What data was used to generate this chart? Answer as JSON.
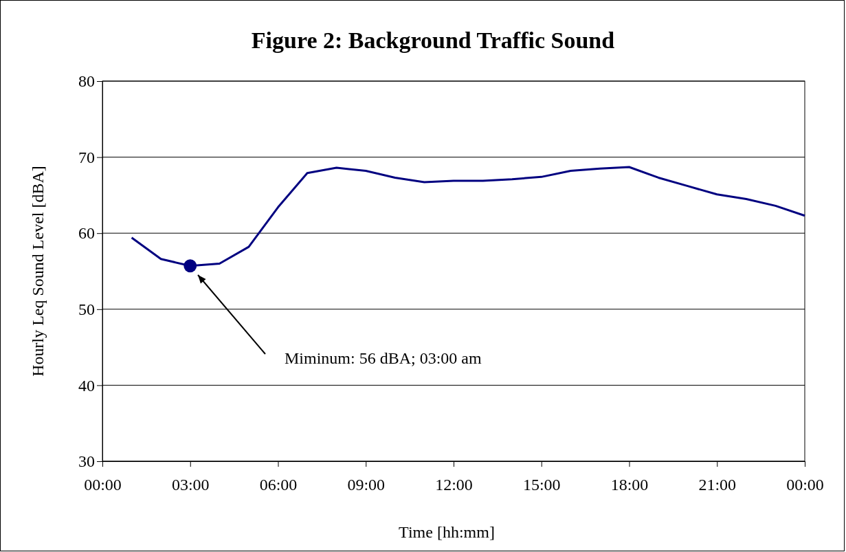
{
  "chart_data": {
    "type": "line",
    "title": "Figure 2: Background Traffic Sound",
    "xlabel": "Time [hh:mm]",
    "ylabel": "Hourly Leq Sound Level [dBA]",
    "x": [
      1,
      2,
      3,
      4,
      5,
      6,
      7,
      8,
      9,
      10,
      11,
      12,
      13,
      14,
      15,
      16,
      17,
      18,
      19,
      20,
      21,
      22,
      23,
      24
    ],
    "series": [
      {
        "color": "#000080",
        "values": [
          59.4,
          56.6,
          55.7,
          56.0,
          58.2,
          63.4,
          67.9,
          68.6,
          68.2,
          67.3,
          66.7,
          66.9,
          66.9,
          67.1,
          67.4,
          68.2,
          68.5,
          68.7,
          67.3,
          66.2,
          65.1,
          64.5,
          63.6,
          62.3
        ]
      },
      {
        "type": "scatter",
        "marker": "circle",
        "color": "#000080",
        "x": [
          3
        ],
        "values": [
          55.7
        ]
      }
    ],
    "xlim": [
      0,
      24
    ],
    "xticks": [
      {
        "value": 0,
        "label": "00:00"
      },
      {
        "value": 3,
        "label": "03:00"
      },
      {
        "value": 6,
        "label": "06:00"
      },
      {
        "value": 9,
        "label": "09:00"
      },
      {
        "value": 12,
        "label": "12:00"
      },
      {
        "value": 15,
        "label": "15:00"
      },
      {
        "value": 18,
        "label": "18:00"
      },
      {
        "value": 21,
        "label": "21:00"
      },
      {
        "value": 24,
        "label": "00:00"
      }
    ],
    "ylim": [
      30,
      80
    ],
    "yticks": [
      30,
      40,
      50,
      60,
      70,
      80
    ],
    "grid": "y",
    "marker": "none",
    "line_style": "solid",
    "annotations": [
      "Miminum: 56 dBA; 03:00 am"
    ]
  }
}
